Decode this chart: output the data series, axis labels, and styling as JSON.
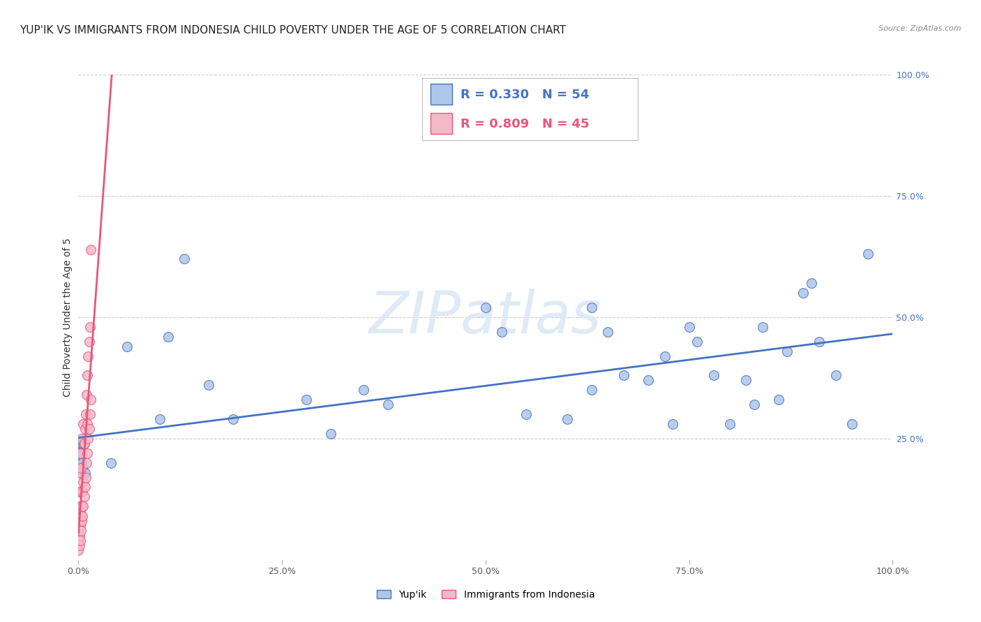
{
  "title": "YUP'IK VS IMMIGRANTS FROM INDONESIA CHILD POVERTY UNDER THE AGE OF 5 CORRELATION CHART",
  "source": "Source: ZipAtlas.com",
  "ylabel": "Child Poverty Under the Age of 5",
  "xlabel_label_yupik": "Yup'ik",
  "xlabel_label_indonesia": "Immigrants from Indonesia",
  "xlim": [
    0,
    1
  ],
  "ylim": [
    0,
    1
  ],
  "x_tick_vals": [
    0,
    0.25,
    0.5,
    0.75,
    1.0
  ],
  "x_tick_labels": [
    "0.0%",
    "25.0%",
    "50.0%",
    "75.0%",
    "100.0%"
  ],
  "y_tick_vals_right": [
    0.25,
    0.5,
    0.75,
    1.0
  ],
  "y_tick_labels_right": [
    "25.0%",
    "50.0%",
    "75.0%",
    "100.0%"
  ],
  "grid_color": "#cccccc",
  "background_color": "#ffffff",
  "yupik_color": "#aec6e8",
  "indonesia_color": "#f4b8c8",
  "yupik_line_color": "#4472c4",
  "indonesia_line_color": "#e8567a",
  "watermark_color": "#dce8f5",
  "R_yupik": 0.33,
  "N_yupik": 54,
  "R_indonesia": 0.809,
  "N_indonesia": 45,
  "title_fontsize": 11,
  "axis_fontsize": 10,
  "tick_fontsize": 9,
  "yupik_x": [
    0.001,
    0.001,
    0.001,
    0.002,
    0.002,
    0.002,
    0.002,
    0.003,
    0.003,
    0.003,
    0.004,
    0.004,
    0.005,
    0.005,
    0.006,
    0.007,
    0.008,
    0.04,
    0.06,
    0.1,
    0.11,
    0.13,
    0.16,
    0.19,
    0.28,
    0.31,
    0.35,
    0.38,
    0.5,
    0.52,
    0.55,
    0.6,
    0.63,
    0.63,
    0.65,
    0.67,
    0.7,
    0.72,
    0.73,
    0.75,
    0.76,
    0.78,
    0.8,
    0.82,
    0.83,
    0.84,
    0.86,
    0.87,
    0.89,
    0.9,
    0.91,
    0.93,
    0.95,
    0.97
  ],
  "yupik_y": [
    0.21,
    0.23,
    0.2,
    0.22,
    0.19,
    0.21,
    0.24,
    0.22,
    0.2,
    0.18,
    0.2,
    0.24,
    0.22,
    0.19,
    0.24,
    0.24,
    0.18,
    0.2,
    0.44,
    0.29,
    0.46,
    0.62,
    0.36,
    0.29,
    0.33,
    0.26,
    0.35,
    0.32,
    0.52,
    0.47,
    0.3,
    0.29,
    0.35,
    0.52,
    0.47,
    0.38,
    0.37,
    0.42,
    0.28,
    0.48,
    0.45,
    0.38,
    0.28,
    0.37,
    0.32,
    0.48,
    0.33,
    0.43,
    0.55,
    0.57,
    0.45,
    0.38,
    0.28,
    0.63
  ],
  "indonesia_x": [
    0.0,
    0.0,
    0.0,
    0.0,
    0.0,
    0.0,
    0.001,
    0.001,
    0.001,
    0.001,
    0.001,
    0.002,
    0.002,
    0.002,
    0.002,
    0.003,
    0.003,
    0.003,
    0.004,
    0.004,
    0.004,
    0.005,
    0.005,
    0.006,
    0.006,
    0.006,
    0.007,
    0.007,
    0.008,
    0.008,
    0.009,
    0.009,
    0.01,
    0.01,
    0.011,
    0.011,
    0.011,
    0.012,
    0.012,
    0.013,
    0.013,
    0.014,
    0.014,
    0.015,
    0.015
  ],
  "indonesia_y": [
    0.02,
    0.04,
    0.06,
    0.08,
    0.11,
    0.14,
    0.03,
    0.05,
    0.08,
    0.14,
    0.18,
    0.04,
    0.07,
    0.1,
    0.22,
    0.06,
    0.09,
    0.19,
    0.08,
    0.11,
    0.25,
    0.09,
    0.14,
    0.11,
    0.16,
    0.28,
    0.13,
    0.24,
    0.15,
    0.27,
    0.17,
    0.3,
    0.2,
    0.34,
    0.22,
    0.28,
    0.38,
    0.25,
    0.42,
    0.27,
    0.45,
    0.3,
    0.48,
    0.33,
    0.64
  ]
}
